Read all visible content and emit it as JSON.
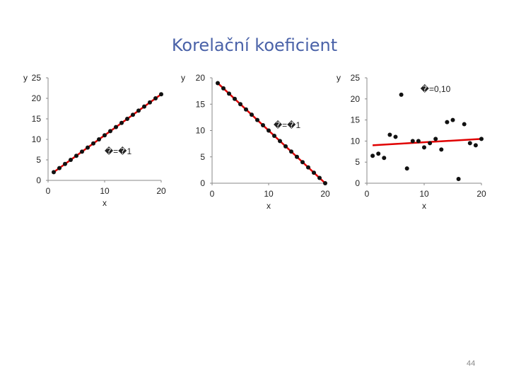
{
  "slide": {
    "title": "Korelační koeficient",
    "page_number": "44"
  },
  "colors": {
    "points": "#111111",
    "fit_line": "#e00000",
    "axis": "#888888",
    "title": "#4a62a8"
  },
  "chart_data": [
    {
      "type": "scatter",
      "xlabel": "x",
      "ylabel": "y",
      "annotation": "�=�1",
      "xlim": [
        0,
        20
      ],
      "ylim": [
        0,
        25
      ],
      "xticks": [
        0,
        10,
        20
      ],
      "yticks": [
        0,
        5,
        10,
        15,
        20,
        25
      ],
      "x": [
        1,
        2,
        3,
        4,
        5,
        6,
        7,
        8,
        9,
        10,
        11,
        12,
        13,
        14,
        15,
        16,
        17,
        18,
        19,
        20
      ],
      "y": [
        2,
        3,
        4,
        5,
        6,
        7,
        8,
        9,
        10,
        11,
        12,
        13,
        14,
        15,
        16,
        17,
        18,
        19,
        20,
        21
      ],
      "fit_line": [
        [
          1,
          2
        ],
        [
          20,
          21
        ]
      ]
    },
    {
      "type": "scatter",
      "xlabel": "x",
      "ylabel": "y",
      "annotation": "�=�1",
      "xlim": [
        0,
        20
      ],
      "ylim": [
        0,
        20
      ],
      "xticks": [
        0,
        10,
        20
      ],
      "yticks": [
        0,
        5,
        10,
        15,
        20
      ],
      "x": [
        1,
        2,
        3,
        4,
        5,
        6,
        7,
        8,
        9,
        10,
        11,
        12,
        13,
        14,
        15,
        16,
        17,
        18,
        19,
        20
      ],
      "y": [
        19,
        18,
        17,
        16,
        15,
        14,
        13,
        12,
        11,
        10,
        9,
        8,
        7,
        6,
        5,
        4,
        3,
        2,
        1,
        0
      ],
      "fit_line": [
        [
          1,
          19
        ],
        [
          20,
          0
        ]
      ]
    },
    {
      "type": "scatter",
      "xlabel": "x",
      "ylabel": "y",
      "annotation": "�=0,10",
      "xlim": [
        0,
        20
      ],
      "ylim": [
        0,
        25
      ],
      "xticks": [
        0,
        10,
        20
      ],
      "yticks": [
        0,
        5,
        10,
        15,
        20,
        25
      ],
      "x": [
        1,
        2,
        3,
        4,
        5,
        6,
        7,
        8,
        9,
        10,
        11,
        12,
        13,
        14,
        15,
        16,
        17,
        18,
        19,
        20
      ],
      "y": [
        6.5,
        7,
        6,
        11.5,
        11,
        21,
        3.5,
        10,
        10,
        8.5,
        9.5,
        10.5,
        8,
        14.5,
        15,
        1,
        14,
        9.5,
        9,
        10.5
      ],
      "fit_line": [
        [
          1,
          9
        ],
        [
          20,
          10.5
        ]
      ]
    }
  ]
}
